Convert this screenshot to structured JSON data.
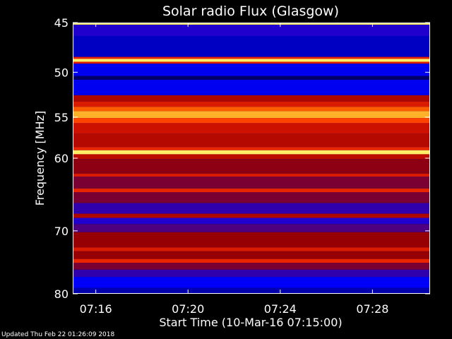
{
  "chart_data": {
    "type": "heatmap",
    "title": "Solar radio Flux (Glasgow)",
    "xlabel": "Start Time (10-Mar-16 07:15:00)",
    "ylabel": "Frequency [MHz]",
    "x_range_minutes": [
      "07:15:00",
      "07:30:30"
    ],
    "y_range_mhz": [
      45,
      80
    ],
    "y_scale": "log",
    "x_ticks": [
      "07:16",
      "07:20",
      "07:24",
      "07:28"
    ],
    "y_ticks": [
      45,
      50,
      55,
      60,
      70,
      80
    ],
    "colormap": [
      "#000066",
      "#0000ff",
      "#990000",
      "#cc1100",
      "#ff3300",
      "#ff8800",
      "#ffee66"
    ],
    "bands": [
      {
        "f_start": 45.0,
        "f_end": 45.2,
        "level": 1.0
      },
      {
        "f_start": 45.2,
        "f_end": 46.3,
        "level": 0.2
      },
      {
        "f_start": 46.3,
        "f_end": 48.4,
        "level": 0.1
      },
      {
        "f_start": 48.4,
        "f_end": 48.6,
        "level": 0.6
      },
      {
        "f_start": 48.6,
        "f_end": 48.9,
        "level": 1.0
      },
      {
        "f_start": 48.9,
        "f_end": 49.1,
        "level": 0.55
      },
      {
        "f_start": 49.1,
        "f_end": 50.4,
        "level": 0.15
      },
      {
        "f_start": 50.4,
        "f_end": 50.8,
        "level": 0.0
      },
      {
        "f_start": 50.8,
        "f_end": 52.5,
        "level": 0.15
      },
      {
        "f_start": 52.5,
        "f_end": 53.2,
        "level": 0.4
      },
      {
        "f_start": 53.2,
        "f_end": 53.8,
        "level": 0.55
      },
      {
        "f_start": 53.8,
        "f_end": 54.3,
        "level": 0.75
      },
      {
        "f_start": 54.3,
        "f_end": 55.1,
        "level": 0.9
      },
      {
        "f_start": 55.1,
        "f_end": 55.7,
        "level": 0.7
      },
      {
        "f_start": 55.7,
        "f_end": 57.0,
        "level": 0.5
      },
      {
        "f_start": 57.0,
        "f_end": 58.6,
        "level": 0.42
      },
      {
        "f_start": 58.6,
        "f_end": 59.0,
        "level": 0.6
      },
      {
        "f_start": 59.0,
        "f_end": 59.5,
        "level": 1.0
      },
      {
        "f_start": 59.5,
        "f_end": 60.1,
        "level": 0.45
      },
      {
        "f_start": 60.1,
        "f_end": 62.0,
        "level": 0.32
      },
      {
        "f_start": 62.0,
        "f_end": 62.4,
        "level": 0.55
      },
      {
        "f_start": 62.4,
        "f_end": 64.0,
        "level": 0.3
      },
      {
        "f_start": 64.0,
        "f_end": 64.5,
        "level": 0.6
      },
      {
        "f_start": 64.5,
        "f_end": 66.0,
        "level": 0.3
      },
      {
        "f_start": 66.0,
        "f_end": 67.5,
        "level": 0.22
      },
      {
        "f_start": 67.5,
        "f_end": 68.1,
        "level": 0.4
      },
      {
        "f_start": 68.1,
        "f_end": 69.0,
        "level": 0.2
      },
      {
        "f_start": 69.0,
        "f_end": 70.2,
        "level": 0.25
      },
      {
        "f_start": 70.2,
        "f_end": 72.5,
        "level": 0.33
      },
      {
        "f_start": 72.5,
        "f_end": 73.1,
        "level": 0.55
      },
      {
        "f_start": 73.1,
        "f_end": 74.3,
        "level": 0.33
      },
      {
        "f_start": 74.3,
        "f_end": 74.9,
        "level": 0.6
      },
      {
        "f_start": 74.9,
        "f_end": 76.0,
        "level": 0.3
      },
      {
        "f_start": 76.0,
        "f_end": 77.2,
        "level": 0.22
      },
      {
        "f_start": 77.2,
        "f_end": 79.0,
        "level": 0.16
      },
      {
        "f_start": 79.0,
        "f_end": 80.0,
        "level": 0.08
      }
    ]
  },
  "footer": {
    "updated_text": "Updated Thu Feb 22 01:26:09 2018"
  }
}
